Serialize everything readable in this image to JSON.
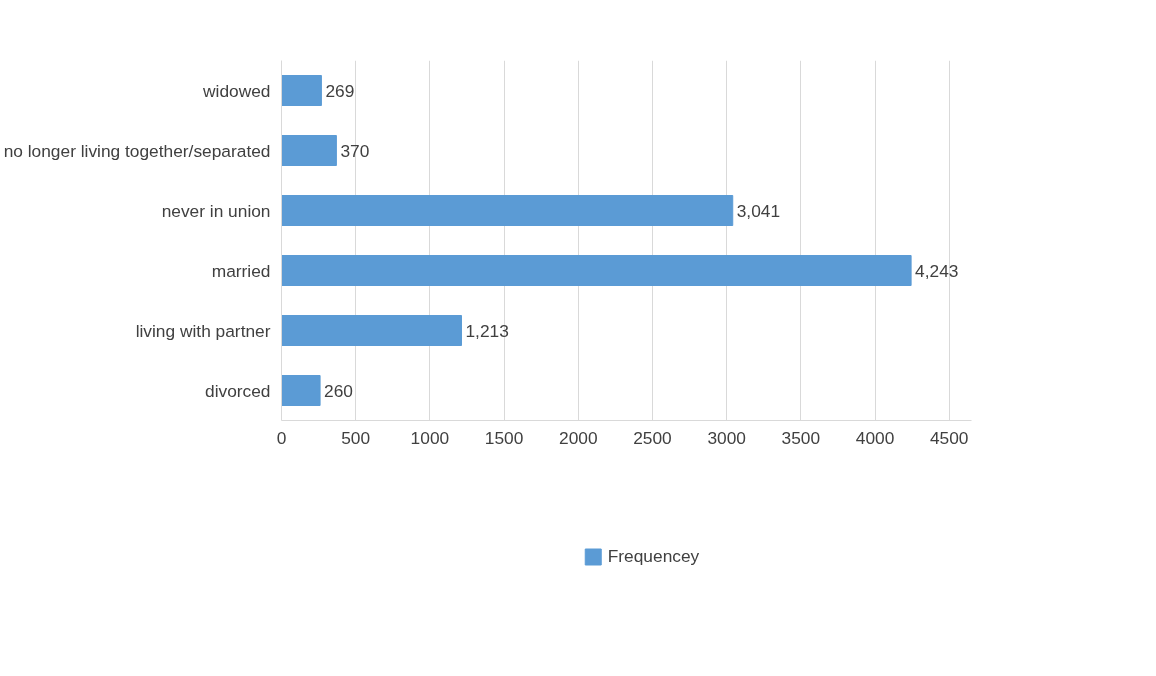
{
  "chart_data": {
    "type": "bar",
    "orientation": "horizontal",
    "categories": [
      "widowed",
      "no longer living together/separated",
      "never in union",
      "married",
      "living with partner",
      "divorced"
    ],
    "series": [
      {
        "name": "Frequencey",
        "color": "#5b9bd5",
        "values": [
          269,
          370,
          3041,
          4243,
          1213,
          260
        ],
        "value_labels": [
          "269",
          "370",
          "3,041",
          "4,243",
          "1,213",
          "260"
        ]
      }
    ],
    "xlim": [
      0,
      4650
    ],
    "xticks": [
      0,
      500,
      1000,
      1500,
      2000,
      2500,
      3000,
      3500,
      4000,
      4500
    ],
    "grid": "x",
    "legend": "bottom"
  }
}
